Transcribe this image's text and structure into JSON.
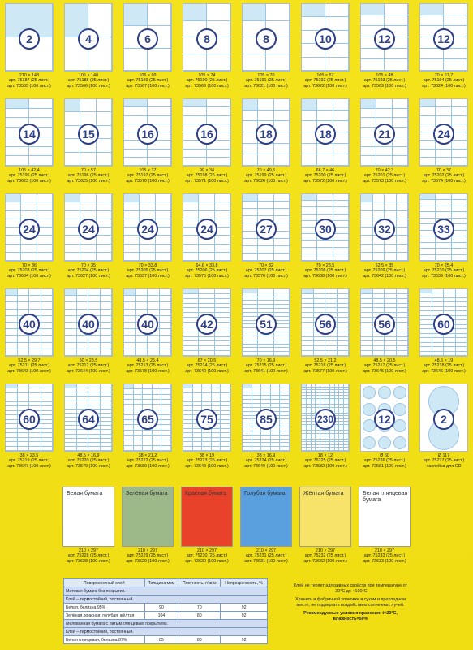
{
  "labels": [
    {
      "count": "2",
      "size": "210 × 148",
      "art1": "арт. 75187 (25 лист.)",
      "art2": "арт. 73565 (100 лист.)"
    },
    {
      "count": "4",
      "size": "105 × 148",
      "art1": "арт. 75188 (25 лист.)",
      "art2": "арт. 73566 (100 лист.)"
    },
    {
      "count": "6",
      "size": "105 × 99",
      "art1": "арт. 75189 (25 лист.)",
      "art2": "арт. 73567 (100 лист.)"
    },
    {
      "count": "8",
      "size": "105 × 74",
      "art1": "арт. 75190 (25 лист.)",
      "art2": "арт. 73568 (100 лист.)"
    },
    {
      "count": "8",
      "size": "105 × 70",
      "art1": "арт. 75191 (25 лист.)",
      "art2": "арт. 73621 (100 лист.)"
    },
    {
      "count": "10",
      "size": "105 × 57",
      "art1": "арт. 75192 (25 лист.)",
      "art2": "арт. 73622 (100 лист.)"
    },
    {
      "count": "12",
      "size": "105 × 48",
      "art1": "арт. 75193 (25 лист.)",
      "art2": "арт. 73569 (100 лист.)"
    },
    {
      "count": "12",
      "size": "70 × 67,7",
      "art1": "арт. 75194 (25 лист.)",
      "art2": "арт. 73624 (100 лист.)"
    },
    {
      "count": "14",
      "size": "105 × 42,4",
      "art1": "арт. 75195 (25 лист.)",
      "art2": "арт. 73623 (100 лист.)"
    },
    {
      "count": "15",
      "size": "70 × 57",
      "art1": "арт. 75196 (25 лист.)",
      "art2": "арт. 73625 (100 лист.)"
    },
    {
      "count": "16",
      "size": "105 × 37",
      "art1": "арт. 75197 (25 лист.)",
      "art2": "арт. 73570 (100 лист.)"
    },
    {
      "count": "16",
      "size": "99 × 34",
      "art1": "арт. 75198 (25 лист.)",
      "art2": "арт. 73571 (100 лист.)"
    },
    {
      "count": "18",
      "size": "70 × 49,5",
      "art1": "арт. 75199 (25 лист.)",
      "art2": "арт. 73626 (100 лист.)"
    },
    {
      "count": "18",
      "size": "66,7 × 46",
      "art1": "арт. 75200 (25 лист.)",
      "art2": "арт. 73572 (100 лист.)"
    },
    {
      "count": "21",
      "size": "70 × 42,3",
      "art1": "арт. 75201 (25 лист.)",
      "art2": "арт. 73573 (100 лист.)"
    },
    {
      "count": "24",
      "size": "70 × 37",
      "art1": "арт. 75202 (25 лист.)",
      "art2": "арт. 73574 (100 лист.)"
    },
    {
      "count": "24",
      "size": "70 × 36",
      "art1": "арт. 75203 (25 лист.)",
      "art2": "арт. 73634 (100 лист.)"
    },
    {
      "count": "24",
      "size": "70 × 35",
      "art1": "арт. 75204 (25 лист.)",
      "art2": "арт. 73627 (100 лист.)"
    },
    {
      "count": "24",
      "size": "70 × 33,8",
      "art1": "арт. 75205 (25 лист.)",
      "art2": "арт. 73637 (100 лист.)"
    },
    {
      "count": "24",
      "size": "64,6 × 33,8",
      "art1": "арт. 75206 (25 лист.)",
      "art2": "арт. 73575 (100 лист.)"
    },
    {
      "count": "27",
      "size": "70 × 32",
      "art1": "арт. 75207 (25 лист.)",
      "art2": "арт. 73576 (100 лист.)"
    },
    {
      "count": "30",
      "size": "70 × 28,5",
      "art1": "арт. 75208 (25 лист.)",
      "art2": "арт. 73638 (100 лист.)"
    },
    {
      "count": "32",
      "size": "52,5 × 35",
      "art1": "арт. 75209 (25 лист.)",
      "art2": "арт. 73642 (100 лист.)"
    },
    {
      "count": "33",
      "size": "70 × 25,4",
      "art1": "арт. 75210 (25 лист.)",
      "art2": "арт. 73639 (100 лист.)"
    },
    {
      "count": "40",
      "size": "52,5 × 29,7",
      "art1": "арт. 75211 (25 лист.)",
      "art2": "арт. 73643 (100 лист.)"
    },
    {
      "count": "40",
      "size": "50 × 28,5",
      "art1": "арт. 75212 (25 лист.)",
      "art2": "арт. 73644 (100 лист.)"
    },
    {
      "count": "40",
      "size": "48,5 × 25,4",
      "art1": "арт. 75213 (25 лист.)",
      "art2": "арт. 73578 (100 лист.)"
    },
    {
      "count": "42",
      "size": "67 × 20,5",
      "art1": "арт. 75214 (25 лист.)",
      "art2": "арт. 73640 (100 лист.)"
    },
    {
      "count": "51",
      "size": "70 × 16,9",
      "art1": "арт. 75215 (25 лист.)",
      "art2": "арт. 73641 (100 лист.)"
    },
    {
      "count": "56",
      "size": "52,5 × 21,2",
      "art1": "арт. 75216 (25 лист.)",
      "art2": "арт. 73577 (100 лист.)"
    },
    {
      "count": "56",
      "size": "48,5 × 20,5",
      "art1": "арт. 75217 (25 лист.)",
      "art2": "арт. 73645 (100 лист.)"
    },
    {
      "count": "60",
      "size": "48,5 × 19",
      "art1": "арт. 75218 (25 лист.)",
      "art2": "арт. 73646 (100 лист.)"
    },
    {
      "count": "60",
      "size": "38 × 23,5",
      "art1": "арт. 75219 (25 лист.)",
      "art2": "арт. 73647 (100 лист.)"
    },
    {
      "count": "64",
      "size": "48,5 × 16,9",
      "art1": "арт. 75220 (25 лист.)",
      "art2": "арт. 73579 (100 лист.)"
    },
    {
      "count": "65",
      "size": "38 × 21,2",
      "art1": "арт. 75222 (25 лист.)",
      "art2": "арт. 73580 (100 лист.)"
    },
    {
      "count": "75",
      "size": "38 × 19",
      "art1": "арт. 75223 (25 лист.)",
      "art2": "арт. 73648 (100 лист.)"
    },
    {
      "count": "85",
      "size": "38 × 16,9",
      "art1": "арт. 75224 (25 лист.)",
      "art2": "арт. 73649 (100 лист.)"
    },
    {
      "count": "230",
      "size": "18 × 12",
      "art1": "арт. 75225 (25 лист.)",
      "art2": "арт. 73582 (100 лист.)"
    },
    {
      "count": "12",
      "size": "Ø 60",
      "art1": "арт. 75226 (25 лист.)",
      "art2": "арт. 73581 (100 лист.)"
    },
    {
      "count": "2",
      "size": "Ø 117",
      "art1": "арт. 75227 (25 лист.)",
      "art2": "наклейка для CD"
    }
  ],
  "papers": [
    {
      "label": "Белая бумага",
      "size": "210 × 297",
      "art1": "арт. 75228 (25 лист.)",
      "art2": "арт. 73628 (100 лист.)",
      "color": "#ffffff"
    },
    {
      "label": "Зелёная бумага",
      "size": "210 × 297",
      "art1": "арт. 75229 (25 лист.)",
      "art2": "арт. 73629 (100 лист.)",
      "color": "#9db98a"
    },
    {
      "label": "Красная бумага",
      "size": "210 × 297",
      "art1": "арт. 75230 (25 лист.)",
      "art2": "арт. 73630 (100 лист.)",
      "color": "#e8432a"
    },
    {
      "label": "Голубая бумага",
      "size": "210 × 297",
      "art1": "арт. 75231 (25 лист.)",
      "art2": "арт. 73631 (100 лист.)",
      "color": "#5aa0de"
    },
    {
      "label": "Жёлтая бумага",
      "size": "210 × 297",
      "art1": "арт. 75232 (25 лист.)",
      "art2": "арт. 73632 (100 лист.)",
      "color": "#f7e36a"
    },
    {
      "label": "Белая глянцевая бумага",
      "size": "210 × 297",
      "art1": "арт. 75233 (25 лист.)",
      "art2": "арт. 73633 (100 лист.)",
      "color": "#ffffff"
    }
  ],
  "table": {
    "headers": [
      "Поверхностный слой",
      "Толщина мкм",
      "Плотность, г/кв.м",
      "Непрозрачность, %"
    ],
    "sec1": "Матовая бумага без покрытия.",
    "sec1b": "Клей – термостойкий, постоянный.",
    "row1": [
      "Белая, белизна 95%",
      "90",
      "70",
      "92"
    ],
    "row2": [
      "Зелёная, красная, голубая, жёлтая",
      "104",
      "80",
      "92"
    ],
    "sec2": "Мелованная бумага с литым глянцевым покрытием.",
    "sec2b": "Клей – термостойкий, постоянный.",
    "row3": [
      "Белая глянцевая, белизна 87%",
      "85",
      "80",
      "92"
    ]
  },
  "notes": {
    "p1": "Клей не теряет адгезивных свойств при температуре от -20°С до +100°С",
    "p2": "Хранить в фабричной упаковке в сухом и прохладном месте, не подвергать воздействию солнечных лучей.",
    "p3": "Рекомендуемые условия хранения: t=20°С, влажность=50%"
  }
}
